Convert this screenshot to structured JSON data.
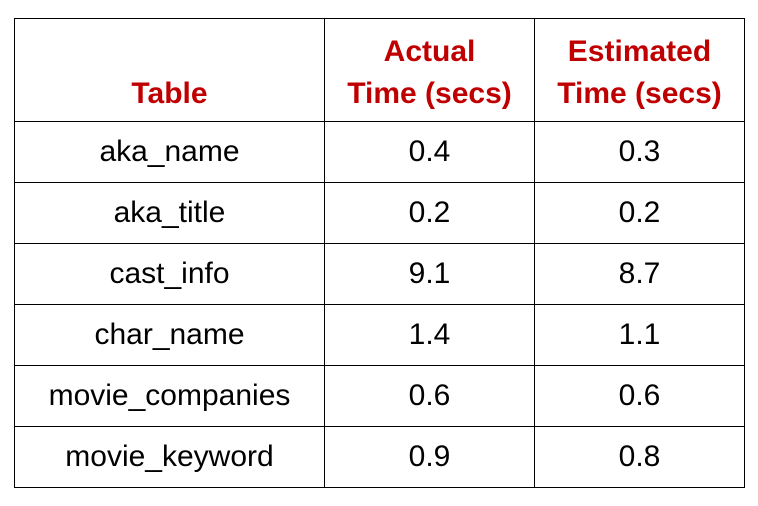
{
  "chart_data": {
    "type": "table",
    "columns": [
      "Table",
      "Actual Time (secs)",
      "Estimated Time (secs)"
    ],
    "rows": [
      [
        "aka_name",
        "0.4",
        "0.3"
      ],
      [
        "aka_title",
        "0.2",
        "0.2"
      ],
      [
        "cast_info",
        "9.1",
        "8.7"
      ],
      [
        "char_name",
        "1.4",
        "1.1"
      ],
      [
        "movie_companies",
        "0.6",
        "0.6"
      ],
      [
        "movie_keyword",
        "0.9",
        "0.8"
      ]
    ]
  },
  "header": {
    "table_label": "Table",
    "actual_line1": "Actual",
    "actual_line2": "Time (secs)",
    "estimated_line1": "Estimated",
    "estimated_line2": "Time (secs)"
  },
  "colors": {
    "header_text": "#c00000",
    "cell_text": "#000000",
    "border": "#000000"
  }
}
